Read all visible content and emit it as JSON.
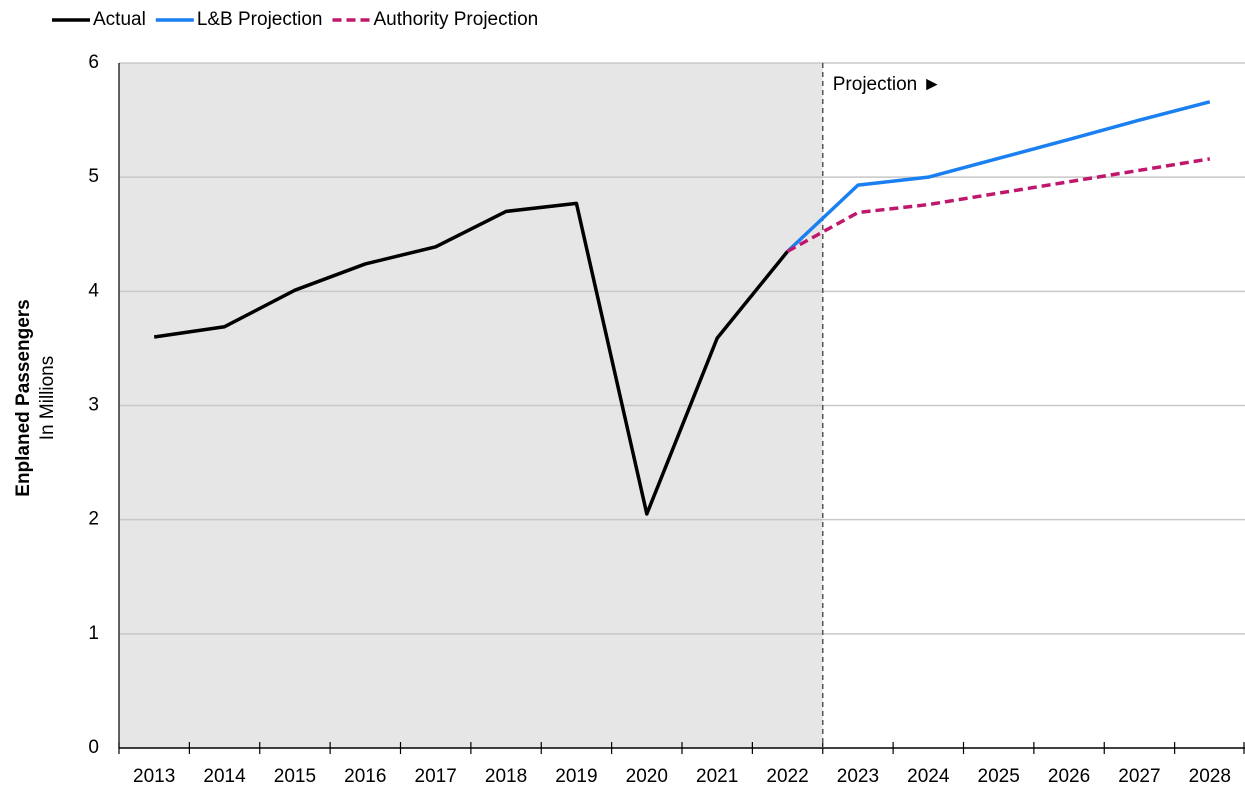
{
  "chart_data": {
    "type": "line",
    "y_label": "Enplaned Passengers",
    "y_label_sub": "In Millions",
    "annotation": "Projection ►",
    "categories": [
      "2013",
      "2014",
      "2015",
      "2016",
      "2017",
      "2018",
      "2019",
      "2020",
      "2021",
      "2022",
      "2023",
      "2024",
      "2025",
      "2026",
      "2027",
      "2028"
    ],
    "series": [
      {
        "name": "Actual",
        "color": "#000000",
        "dash": false,
        "values": [
          3.6,
          3.69,
          4.01,
          4.24,
          4.39,
          4.7,
          4.77,
          2.05,
          3.59,
          4.35,
          null,
          null,
          null,
          null,
          null,
          null
        ]
      },
      {
        "name": "L&B Projection",
        "color": "#1a7ff0",
        "dash": false,
        "values": [
          null,
          null,
          null,
          null,
          null,
          null,
          null,
          null,
          null,
          4.35,
          4.93,
          5.0,
          5.165,
          5.33,
          5.5,
          5.66
        ]
      },
      {
        "name": "Authority Projection",
        "color": "#c0176c",
        "dash": true,
        "values": [
          null,
          null,
          null,
          null,
          null,
          null,
          null,
          null,
          null,
          4.35,
          4.69,
          4.76,
          4.86,
          4.96,
          5.06,
          5.16
        ]
      }
    ],
    "ylim": [
      0,
      6
    ],
    "yticks": [
      0,
      1,
      2,
      3,
      4,
      5,
      6
    ],
    "grid": true
  }
}
